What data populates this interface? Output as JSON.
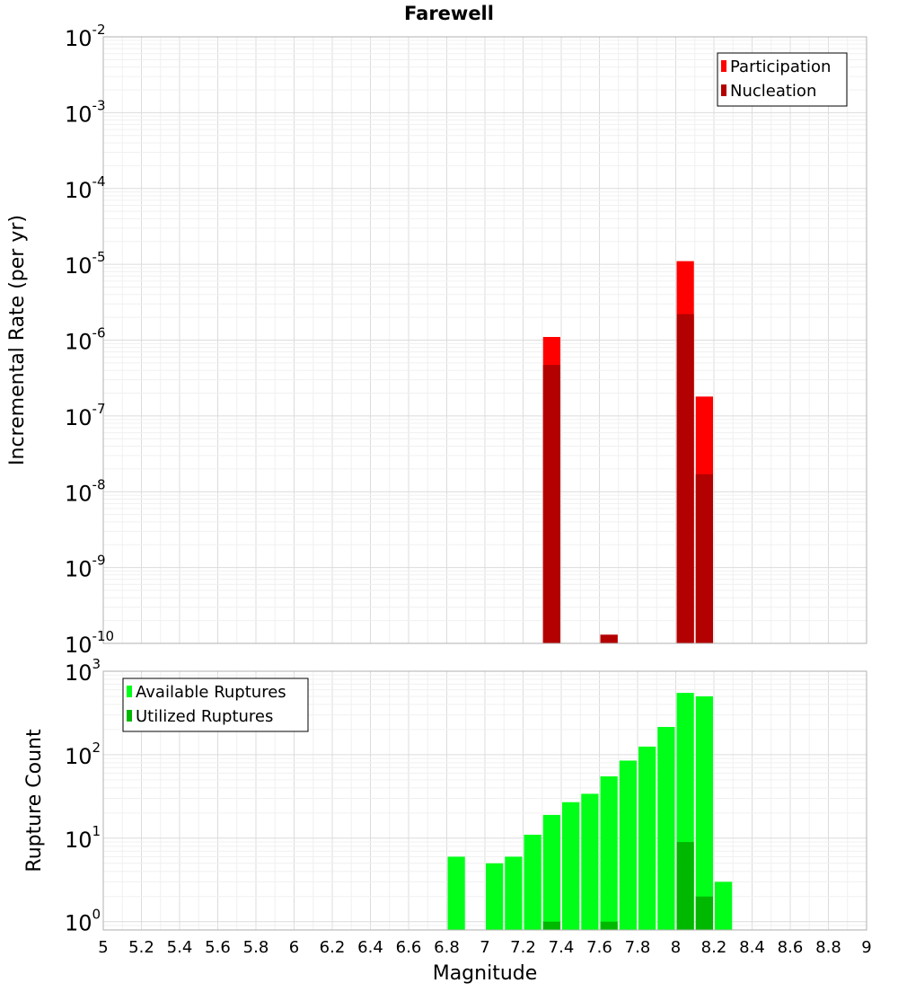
{
  "colors": {
    "participation": "#ff0000",
    "nucleation": "#b30000",
    "available": "#00ff18",
    "utilized": "#00b800",
    "grid_major": "#dcdcdc",
    "grid_minor": "#f0f0f0",
    "frame": "#b0b0b0"
  },
  "chart_data": [
    {
      "type": "bar",
      "title": "Farewell",
      "ylabel": "Incremental Rate (per yr)",
      "xlabel": "",
      "y_scale": "log",
      "xlim": [
        5,
        9
      ],
      "ylim_exp": [
        -10,
        -2
      ],
      "y_tick_base": "10",
      "y_tick_exponents": [
        "-10",
        "-9",
        "-8",
        "-7",
        "-6",
        "-5",
        "-4",
        "-3",
        "-2"
      ],
      "bin_width": 0.1,
      "legend_position": "top-right",
      "series": [
        {
          "name": "Participation",
          "color_key": "participation",
          "x": [
            7.35,
            7.65,
            8.05,
            8.15
          ],
          "values": [
            1.1e-06,
            1.3e-10,
            1.1e-05,
            1.8e-07
          ]
        },
        {
          "name": "Nucleation",
          "color_key": "nucleation",
          "x": [
            7.35,
            7.65,
            8.05,
            8.15
          ],
          "values": [
            4.7e-07,
            1.3e-10,
            2.2e-06,
            1.7e-08
          ]
        }
      ]
    },
    {
      "type": "bar",
      "title": "",
      "ylabel": "Rupture Count",
      "xlabel": "Magnitude",
      "y_scale": "log",
      "xlim": [
        5,
        9
      ],
      "ylim_exp": [
        -0.1,
        3
      ],
      "y_tick_base": "10",
      "y_tick_exponents": [
        "0",
        "1",
        "2",
        "3"
      ],
      "x_ticks": [
        "5",
        "5.2",
        "5.4",
        "5.6",
        "5.8",
        "6",
        "6.2",
        "6.4",
        "6.6",
        "6.8",
        "7",
        "7.2",
        "7.4",
        "7.6",
        "7.8",
        "8",
        "8.2",
        "8.4",
        "8.6",
        "8.8",
        "9"
      ],
      "bin_width": 0.1,
      "legend_position": "top-left",
      "series": [
        {
          "name": "Available Ruptures",
          "color_key": "available",
          "x": [
            6.85,
            7.05,
            7.15,
            7.25,
            7.35,
            7.45,
            7.55,
            7.65,
            7.75,
            7.85,
            7.95,
            8.05,
            8.15,
            8.25
          ],
          "values": [
            6,
            5,
            6,
            11,
            19,
            27,
            34,
            55,
            85,
            125,
            215,
            550,
            500,
            3
          ]
        },
        {
          "name": "Utilized Ruptures",
          "color_key": "utilized",
          "x": [
            7.35,
            7.65,
            8.05,
            8.15
          ],
          "values": [
            1,
            1,
            9,
            2
          ]
        }
      ]
    }
  ]
}
